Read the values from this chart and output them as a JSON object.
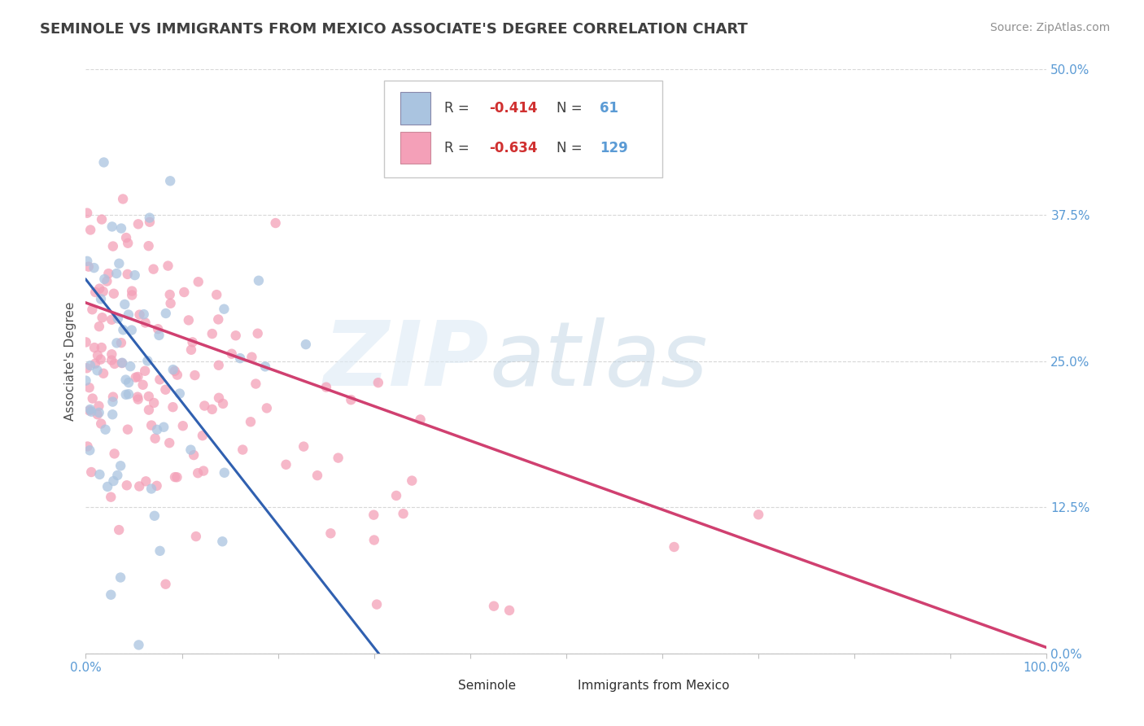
{
  "title": "SEMINOLE VS IMMIGRANTS FROM MEXICO ASSOCIATE'S DEGREE CORRELATION CHART",
  "source_text": "Source: ZipAtlas.com",
  "ylabel": "Associate's Degree",
  "xlim": [
    0,
    100
  ],
  "ylim": [
    0,
    50
  ],
  "ytick_labels": [
    "0.0%",
    "12.5%",
    "25.0%",
    "37.5%",
    "50.0%"
  ],
  "ytick_values": [
    0,
    12.5,
    25,
    37.5,
    50
  ],
  "blue_R": -0.414,
  "blue_N": 61,
  "pink_R": -0.634,
  "pink_N": 129,
  "blue_color": "#aac4e0",
  "pink_color": "#f4a0b8",
  "blue_line_color": "#3060b0",
  "pink_line_color": "#d04070",
  "title_color": "#404040",
  "source_color": "#909090",
  "tick_label_color": "#5b9bd5",
  "legend_R_color": "#d03030",
  "legend_N_color": "#5b9bd5",
  "legend_text_color": "#404040",
  "background_color": "#ffffff",
  "grid_color": "#d8d8d8",
  "seminole_label": "Seminole",
  "immigrants_label": "Immigrants from Mexico",
  "blue_line_intercept": 32.0,
  "blue_line_slope": -1.05,
  "pink_line_intercept": 30.0,
  "pink_line_slope": -0.295
}
